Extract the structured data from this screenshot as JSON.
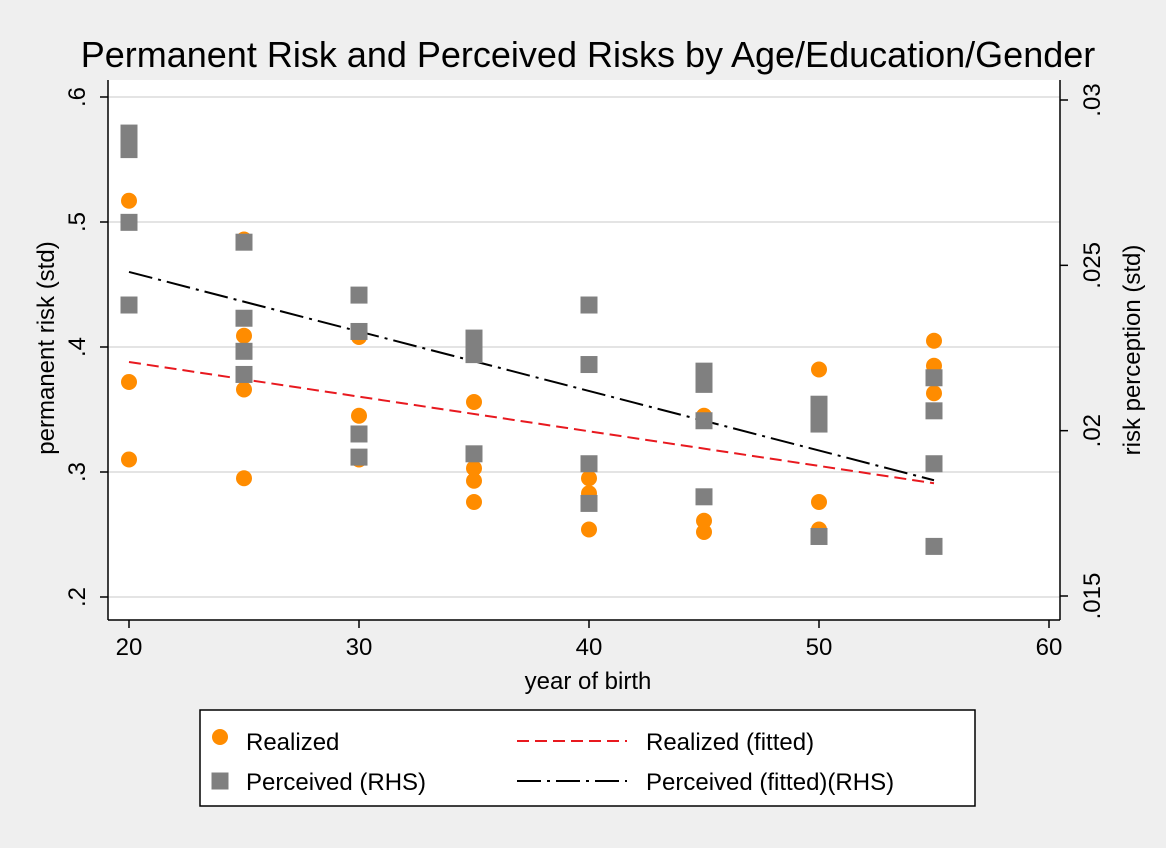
{
  "chart_data": {
    "type": "scatter",
    "title": "Permanent Risk and Perceived Risks by Age/Education/Gender",
    "xlabel": "year of birth",
    "ylabel_left": "permanent risk (std)",
    "ylabel_right": "risk perception (std)",
    "xlim": [
      20,
      60
    ],
    "ylim_left": [
      0.2,
      0.6
    ],
    "ylim_right": [
      0.015,
      0.03
    ],
    "x_ticks": [
      20,
      30,
      40,
      50,
      60
    ],
    "x_tick_labels": [
      "20",
      "30",
      "40",
      "50",
      "60"
    ],
    "y_left_ticks": [
      0.2,
      0.3,
      0.4,
      0.5,
      0.6
    ],
    "y_left_tick_labels": [
      ".2",
      ".3",
      ".4",
      ".5",
      ".6"
    ],
    "y_right_ticks": [
      0.015,
      0.02,
      0.025,
      0.03
    ],
    "y_right_tick_labels": [
      ".015",
      ".02",
      ".025",
      ".03"
    ],
    "grid": true,
    "legend_position": "bottom",
    "colors": {
      "realized": "#ff8c00",
      "perceived": "#808080",
      "realized_fit": "#e8191f",
      "perceived_fit": "#000000",
      "plot_bg": "#ffffff",
      "outer_bg": "#efefef",
      "grid": "#e4e4e4"
    },
    "series": [
      {
        "name": "Realized",
        "kind": "scatter",
        "axis": "left",
        "marker": "circle",
        "points": [
          [
            20,
            0.517
          ],
          [
            20,
            0.372
          ],
          [
            20,
            0.31
          ],
          [
            25,
            0.486
          ],
          [
            25,
            0.409
          ],
          [
            25,
            0.366
          ],
          [
            25,
            0.295
          ],
          [
            30,
            0.41
          ],
          [
            30,
            0.408
          ],
          [
            30,
            0.345
          ],
          [
            30,
            0.31
          ],
          [
            35,
            0.356
          ],
          [
            35,
            0.303
          ],
          [
            35,
            0.293
          ],
          [
            35,
            0.276
          ],
          [
            40,
            0.295
          ],
          [
            40,
            0.283
          ],
          [
            40,
            0.254
          ],
          [
            45,
            0.345
          ],
          [
            45,
            0.261
          ],
          [
            45,
            0.252
          ],
          [
            50,
            0.382
          ],
          [
            50,
            0.276
          ],
          [
            50,
            0.254
          ],
          [
            55,
            0.405
          ],
          [
            55,
            0.385
          ],
          [
            55,
            0.363
          ]
        ]
      },
      {
        "name": "Perceived (RHS)",
        "kind": "scatter",
        "axis": "right",
        "marker": "square",
        "points": [
          [
            20,
            0.029
          ],
          [
            20,
            0.0285
          ],
          [
            20,
            0.0263
          ],
          [
            20,
            0.0238
          ],
          [
            25,
            0.0257
          ],
          [
            25,
            0.0234
          ],
          [
            25,
            0.0224
          ],
          [
            25,
            0.0217
          ],
          [
            30,
            0.0241
          ],
          [
            30,
            0.023
          ],
          [
            30,
            0.0199
          ],
          [
            30,
            0.0192
          ],
          [
            35,
            0.0228
          ],
          [
            35,
            0.0225
          ],
          [
            35,
            0.0223
          ],
          [
            35,
            0.0193
          ],
          [
            40,
            0.0238
          ],
          [
            40,
            0.022
          ],
          [
            40,
            0.019
          ],
          [
            40,
            0.0178
          ],
          [
            45,
            0.0218
          ],
          [
            45,
            0.0214
          ],
          [
            45,
            0.0203
          ],
          [
            45,
            0.018
          ],
          [
            50,
            0.0208
          ],
          [
            50,
            0.0206
          ],
          [
            50,
            0.0202
          ],
          [
            50,
            0.0168
          ],
          [
            55,
            0.0216
          ],
          [
            55,
            0.0206
          ],
          [
            55,
            0.019
          ],
          [
            55,
            0.0165
          ]
        ]
      },
      {
        "name": "Realized (fitted)",
        "kind": "line",
        "axis": "left",
        "dash": "dashed",
        "points": [
          [
            20,
            0.388
          ],
          [
            55,
            0.291
          ]
        ]
      },
      {
        "name": "Perceived (fitted)(RHS)",
        "kind": "line",
        "axis": "right",
        "dash": "dash-dot",
        "points": [
          [
            20,
            0.0248
          ],
          [
            55,
            0.0185
          ]
        ]
      }
    ]
  }
}
